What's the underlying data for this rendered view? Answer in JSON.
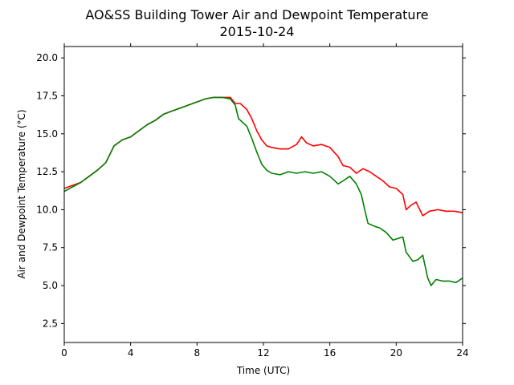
{
  "chart_data": {
    "type": "line",
    "title": "AO&SS Building Tower Air and Dewpoint Temperature",
    "subtitle": "2015-10-24",
    "xlabel": "Time (UTC)",
    "ylabel": "Air and Dewpoint Temperature (°C)",
    "xlim": [
      0,
      24
    ],
    "ylim": [
      1.25,
      20.75
    ],
    "xticks": [
      0,
      4,
      8,
      12,
      16,
      20,
      24
    ],
    "yticks": [
      2.5,
      5.0,
      7.5,
      10.0,
      12.5,
      15.0,
      17.5,
      20.0
    ],
    "grid": false,
    "series": [
      {
        "color": "#ff0000",
        "x": [
          0,
          0.5,
          1,
          1.5,
          2,
          2.5,
          3,
          3.5,
          4,
          4.5,
          5,
          5.5,
          6,
          6.5,
          7,
          7.5,
          8,
          8.5,
          9,
          9.5,
          10,
          10.3,
          10.6,
          10.8,
          11.0,
          11.3,
          11.6,
          11.9,
          12.2,
          12.5,
          13,
          13.5,
          14,
          14.3,
          14.6,
          15,
          15.5,
          16,
          16.5,
          16.8,
          17.2,
          17.6,
          18,
          18.4,
          18.8,
          19.2,
          19.6,
          20,
          20.4,
          20.6,
          20.9,
          21.2,
          21.6,
          22,
          22.5,
          23,
          23.5,
          24
        ],
        "y": [
          11.4,
          11.6,
          11.8,
          12.2,
          12.6,
          13.1,
          14.2,
          14.6,
          14.8,
          15.2,
          15.6,
          15.9,
          16.3,
          16.5,
          16.7,
          16.9,
          17.1,
          17.3,
          17.4,
          17.4,
          17.4,
          17.0,
          17.0,
          16.8,
          16.6,
          16.0,
          15.2,
          14.6,
          14.2,
          14.1,
          14.0,
          14.0,
          14.3,
          14.8,
          14.4,
          14.2,
          14.3,
          14.1,
          13.5,
          12.9,
          12.8,
          12.4,
          12.7,
          12.5,
          12.2,
          11.9,
          11.5,
          11.4,
          11.0,
          10.0,
          10.3,
          10.5,
          9.6,
          9.9,
          10.0,
          9.9,
          9.9,
          9.8
        ]
      },
      {
        "color": "#008000",
        "x": [
          0,
          0.5,
          1,
          1.5,
          2,
          2.5,
          3,
          3.5,
          4,
          4.5,
          5,
          5.5,
          6,
          6.5,
          7,
          7.5,
          8,
          8.5,
          9,
          9.5,
          10,
          10.3,
          10.5,
          10.8,
          11.0,
          11.3,
          11.6,
          11.9,
          12.2,
          12.5,
          13,
          13.5,
          14,
          14.5,
          15,
          15.5,
          16,
          16.5,
          16.8,
          17.2,
          17.6,
          17.9,
          18.1,
          18.3,
          18.7,
          19.0,
          19.4,
          19.8,
          20.1,
          20.4,
          20.6,
          21.0,
          21.3,
          21.6,
          21.9,
          22.1,
          22.4,
          22.8,
          23.2,
          23.6,
          24
        ],
        "y": [
          11.2,
          11.5,
          11.8,
          12.2,
          12.6,
          13.1,
          14.2,
          14.6,
          14.8,
          15.2,
          15.6,
          15.9,
          16.3,
          16.5,
          16.7,
          16.9,
          17.1,
          17.3,
          17.4,
          17.4,
          17.3,
          16.9,
          16.0,
          15.7,
          15.5,
          14.7,
          13.8,
          13.0,
          12.6,
          12.4,
          12.3,
          12.5,
          12.4,
          12.5,
          12.4,
          12.5,
          12.2,
          11.7,
          11.9,
          12.2,
          11.7,
          11.0,
          10.0,
          9.1,
          8.9,
          8.8,
          8.5,
          8.0,
          8.1,
          8.2,
          7.2,
          6.6,
          6.7,
          7.0,
          5.5,
          5.0,
          5.4,
          5.3,
          5.3,
          5.2,
          5.5
        ]
      }
    ]
  }
}
